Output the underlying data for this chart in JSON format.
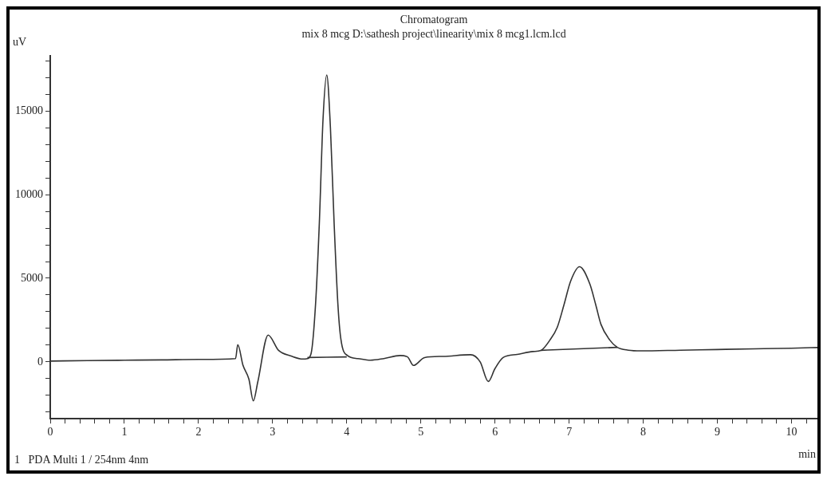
{
  "chart_data": {
    "type": "line",
    "title": "Chromatogram",
    "subtitle": "mix 8 mcg D:\\sathesh project\\linearity\\mix 8 mcg1.lcm.lcd",
    "xlabel": "min",
    "ylabel": "uV",
    "annotations": [
      "1   PDA Multi 1 / 254nm 4nm"
    ],
    "xlim": [
      0,
      10.35
    ],
    "ylim": [
      -3400,
      18300
    ],
    "xticks": [
      0,
      {
        "value": 0.2,
        "label": null
      },
      {
        "value": 0.4,
        "label": null
      },
      {
        "value": 0.6,
        "label": null
      },
      {
        "value": 0.8,
        "label": null
      },
      1,
      {
        "value": 1.2,
        "label": null
      },
      {
        "value": 1.4,
        "label": null
      },
      {
        "value": 1.6,
        "label": null
      },
      {
        "value": 1.8,
        "label": null
      },
      2,
      {
        "value": 2.2,
        "label": null
      },
      {
        "value": 2.4,
        "label": null
      },
      {
        "value": 2.6,
        "label": null
      },
      {
        "value": 2.8,
        "label": null
      },
      3,
      {
        "value": 3.2,
        "label": null
      },
      {
        "value": 3.4,
        "label": null
      },
      {
        "value": 3.6,
        "label": null
      },
      {
        "value": 3.8,
        "label": null
      },
      4,
      {
        "value": 4.2,
        "label": null
      },
      {
        "value": 4.4,
        "label": null
      },
      {
        "value": 4.6,
        "label": null
      },
      {
        "value": 4.8,
        "label": null
      },
      5,
      {
        "value": 5.2,
        "label": null
      },
      {
        "value": 5.4,
        "label": null
      },
      {
        "value": 5.6,
        "label": null
      },
      {
        "value": 5.8,
        "label": null
      },
      6,
      {
        "value": 6.2,
        "label": null
      },
      {
        "value": 6.4,
        "label": null
      },
      {
        "value": 6.6,
        "label": null
      },
      {
        "value": 6.8,
        "label": null
      },
      7,
      {
        "value": 7.2,
        "label": null
      },
      {
        "value": 7.4,
        "label": null
      },
      {
        "value": 7.6,
        "label": null
      },
      {
        "value": 7.8,
        "label": null
      },
      8,
      {
        "value": 8.2,
        "label": null
      },
      {
        "value": 8.4,
        "label": null
      },
      {
        "value": 8.6,
        "label": null
      },
      {
        "value": 8.8,
        "label": null
      },
      9,
      {
        "value": 9.2,
        "label": null
      },
      {
        "value": 9.4,
        "label": null
      },
      {
        "value": 9.6,
        "label": null
      },
      {
        "value": 9.8,
        "label": null
      },
      10,
      {
        "value": 10.2,
        "label": null
      }
    ],
    "yticks": [
      {
        "value": -3000,
        "label": null
      },
      {
        "value": -2000,
        "label": null
      },
      {
        "value": -1000,
        "label": null
      },
      0,
      {
        "value": 1000,
        "label": null
      },
      {
        "value": 2000,
        "label": null
      },
      {
        "value": 3000,
        "label": null
      },
      {
        "value": 4000,
        "label": null
      },
      5000,
      {
        "value": 6000,
        "label": null
      },
      {
        "value": 7000,
        "label": null
      },
      {
        "value": 8000,
        "label": null
      },
      {
        "value": 9000,
        "label": null
      },
      10000,
      {
        "value": 11000,
        "label": null
      },
      {
        "value": 12000,
        "label": null
      },
      {
        "value": 13000,
        "label": null
      },
      {
        "value": 14000,
        "label": null
      },
      15000,
      {
        "value": 16000,
        "label": null
      },
      {
        "value": 17000,
        "label": null
      },
      {
        "value": 18000,
        "label": null
      }
    ],
    "legend": false,
    "marker": "none",
    "line_style": "solid",
    "series": [
      {
        "color": "#333333",
        "x": [
          0,
          0.5,
          1,
          1.5,
          2,
          2.5,
          2.53,
          2.6,
          2.68,
          2.74,
          2.8,
          2.94,
          3.08,
          3.25,
          3.41,
          3.47,
          3.52,
          3.58,
          3.63,
          3.68,
          3.73,
          3.78,
          3.83,
          3.88,
          3.92,
          4.01,
          4.15,
          4.32,
          4.5,
          4.72,
          4.82,
          4.9,
          5.05,
          5.3,
          5.67,
          5.8,
          5.91,
          6.0,
          6.11,
          6.3,
          6.51,
          6.62,
          6.74,
          6.84,
          6.93,
          7.02,
          7.14,
          7.28,
          7.36,
          7.43,
          7.55,
          7.65,
          7.8,
          7.97,
          8.5,
          9,
          9.5,
          10,
          10.35
        ],
        "values": [
          50,
          80,
          100,
          120,
          150,
          200,
          1030,
          -200,
          -1030,
          -2330,
          -1200,
          1600,
          690,
          350,
          170,
          200,
          520,
          3500,
          8270,
          14500,
          17150,
          14000,
          8270,
          3500,
          1390,
          380,
          200,
          100,
          200,
          380,
          300,
          -210,
          260,
          330,
          430,
          0,
          -1170,
          -400,
          260,
          450,
          620,
          690,
          1300,
          2070,
          3400,
          4820,
          5690,
          4650,
          3400,
          2240,
          1300,
          870,
          700,
          660,
          700,
          740,
          780,
          820,
          860
        ]
      },
      {
        "color": "#333333",
        "x": [
          3.47,
          4.0
        ],
        "values": [
          260,
          300
        ]
      },
      {
        "color": "#333333",
        "x": [
          6.62,
          7.65
        ],
        "values": [
          690,
          870
        ]
      }
    ]
  }
}
